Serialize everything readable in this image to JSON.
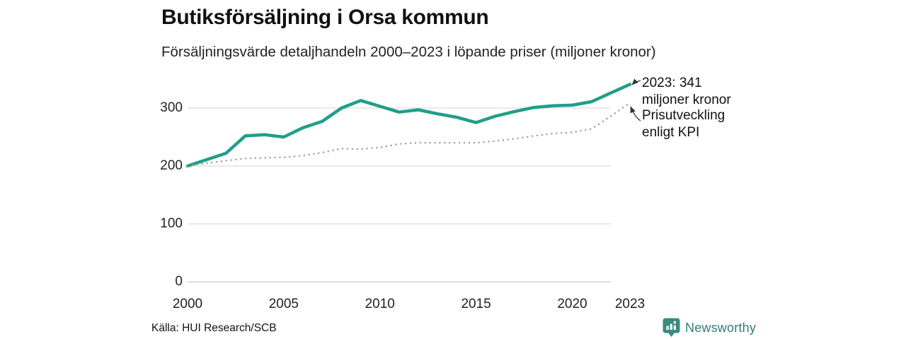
{
  "header": {
    "title": "Butiksförsäljning i Orsa kommun",
    "subtitle": "Försäljningsvärde detaljhandeln 2000–2023 i löpande priser (miljoner kronor)"
  },
  "source": "Källa: HUI Research/SCB",
  "logo": {
    "text": "Newsworthy"
  },
  "colors": {
    "accent": "#1f9e8a",
    "kpi_dotted": "#9b9b9b",
    "grid": "#dcdcdc",
    "text": "#1a1a1a",
    "logo_teal": "#2f7e76",
    "logo_icon": "#3a8a80"
  },
  "chart_data": {
    "type": "line",
    "title": "Butiksförsäljning i Orsa kommun",
    "subtitle": "Försäljningsvärde detaljhandeln 2000–2023 i löpande priser (miljoner kronor)",
    "xlabel": "",
    "ylabel": "miljoner kronor",
    "x": [
      2000,
      2001,
      2002,
      2003,
      2004,
      2005,
      2006,
      2007,
      2008,
      2009,
      2010,
      2011,
      2012,
      2013,
      2014,
      2015,
      2016,
      2017,
      2018,
      2019,
      2020,
      2021,
      2022,
      2023
    ],
    "series": [
      {
        "name": "Butiksförsäljning i löpande priser (miljoner kronor)",
        "style": "solid",
        "color": "#1f9e8a",
        "values": [
          200,
          211,
          222,
          252,
          254,
          250,
          266,
          277,
          300,
          313,
          303,
          293,
          297,
          290,
          284,
          275,
          286,
          294,
          301,
          304,
          305,
          311,
          326,
          341
        ]
      },
      {
        "name": "Prisutveckling enligt KPI",
        "style": "dotted",
        "color": "#9b9b9b",
        "values": [
          200,
          205,
          209,
          213,
          214,
          215,
          218,
          223,
          230,
          229,
          232,
          238,
          240,
          240,
          240,
          240,
          243,
          247,
          252,
          256,
          258,
          264,
          286,
          309
        ]
      }
    ],
    "x_ticks": [
      2000,
      2005,
      2010,
      2015,
      2020,
      2023
    ],
    "y_ticks": [
      0,
      100,
      200,
      300
    ],
    "ylim": [
      0,
      360
    ],
    "xlim": [
      2000,
      2023
    ],
    "grid": "horizontal",
    "legend_position": "none",
    "annotations": [
      {
        "text": "2023: 341 miljoner kronor",
        "target": "solid-line-end"
      },
      {
        "text": "Prisutveckling enligt KPI",
        "target": "dotted-line-end"
      }
    ]
  }
}
